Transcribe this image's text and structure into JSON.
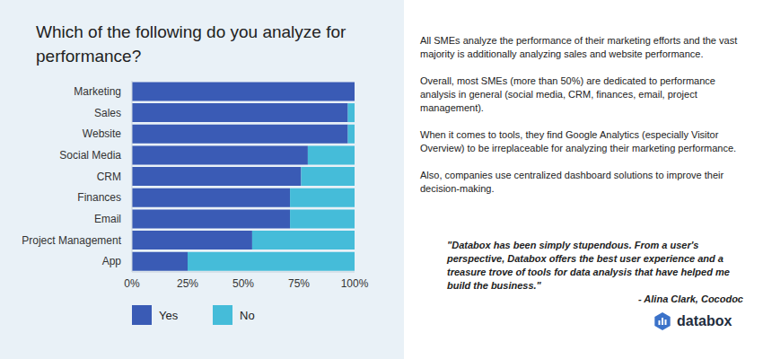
{
  "chart_data": {
    "type": "bar",
    "title": "Which of the following do you analyze for performance?",
    "orientation": "horizontal",
    "stacked": true,
    "grid": false,
    "legend": "bottom",
    "categories": [
      "Marketing",
      "Sales",
      "Website",
      "Social Media",
      "CRM",
      "Finances",
      "Email",
      "Project Management",
      "App"
    ],
    "series": [
      {
        "name": "Yes",
        "color": "#3a5bb5",
        "values": [
          100,
          97,
          97,
          79,
          76,
          71,
          71,
          54,
          25
        ]
      },
      {
        "name": "No",
        "color": "#45bcd9",
        "values": [
          0,
          3,
          3,
          21,
          24,
          29,
          29,
          46,
          75
        ]
      }
    ],
    "xlim": [
      0,
      100
    ],
    "xticks": [
      {
        "value": 0,
        "label": "0%"
      },
      {
        "value": 25,
        "label": "25%"
      },
      {
        "value": 50,
        "label": "50%"
      },
      {
        "value": 75,
        "label": "75%"
      },
      {
        "value": 100,
        "label": "100%"
      }
    ]
  },
  "text_panel": {
    "paragraphs": [
      "All SMEs analyze the performance of their marketing efforts and the vast majority is additionally analyzing sales and website performance.",
      "Overall, most SMEs (more than 50%) are dedicated to performance analysis in general (social media, CRM, finances, email, project management).",
      "When it comes to tools, they find Google Analytics (especially Visitor Overview) to be irreplaceable for analyzing their marketing performance.",
      "Also, companies use centralized dashboard solutions to improve their decision-making."
    ],
    "quote": "\"Databox has been simply stupendous. From a user's perspective, Databox offers the best user experience and a treasure trove of tools for data analysis that have helped me build the business.\"",
    "quote_author": "- Alina Clark, Cocodoc",
    "brand": "databox"
  }
}
